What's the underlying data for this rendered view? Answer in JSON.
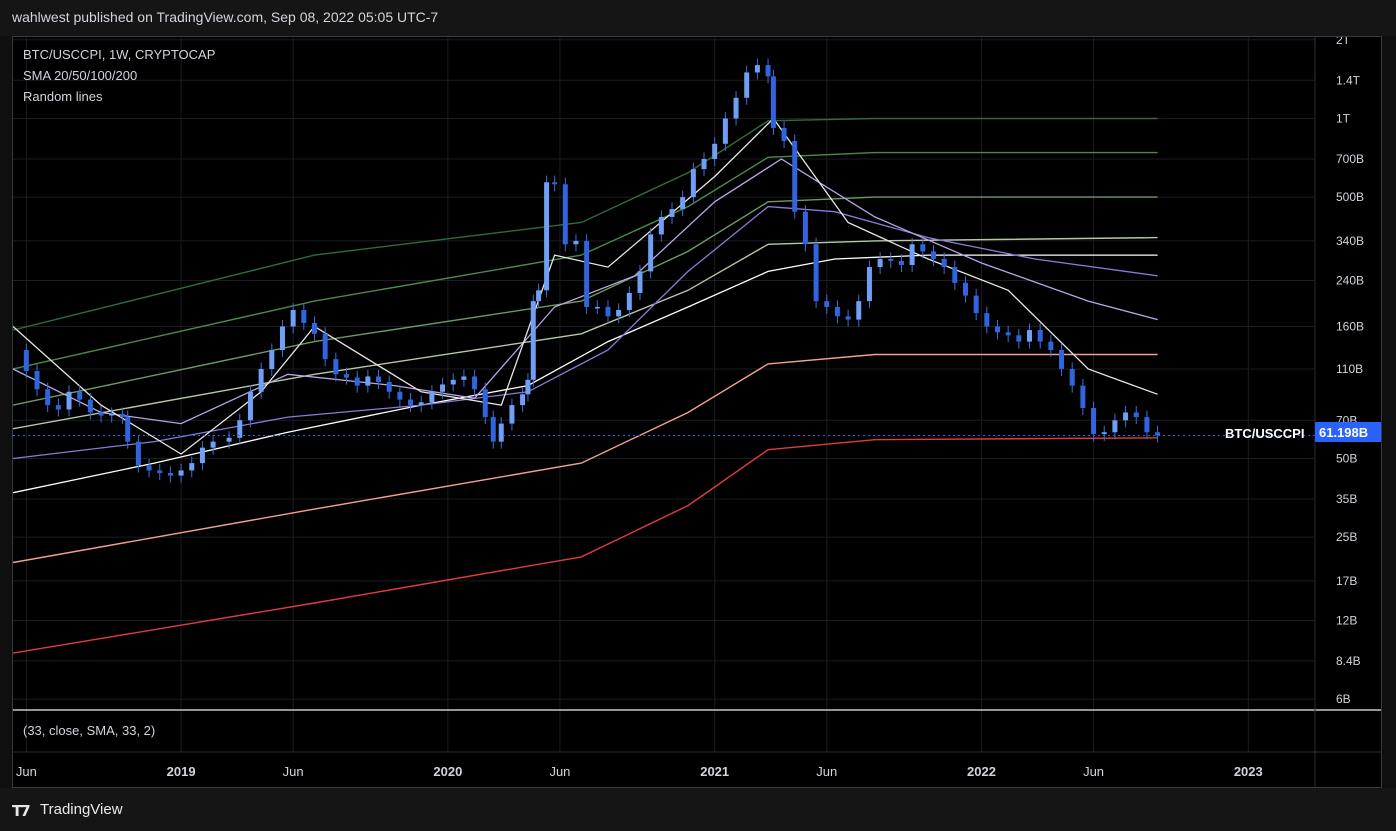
{
  "header": {
    "published": "wahlwest published on TradingView.com, Sep 08, 2022 05:05 UTC-7"
  },
  "footer": {
    "brand": "TradingView",
    "logo_icon": "tradingview-logo-icon"
  },
  "chart_data": {
    "type": "candlestick",
    "symbol_line": "BTC/USCCPI, 1W, CRYPTOCAP",
    "legend_lines": [
      "SMA 20/50/100/200",
      "Random lines"
    ],
    "pane_label": "(33, close, SMA, 33, 2)",
    "price_label": {
      "name": "BTC/USCCPI",
      "value": "61.198B"
    },
    "y_scale": "log",
    "y_ticks": [
      "2T",
      "1.4T",
      "1T",
      "700B",
      "500B",
      "340B",
      "240B",
      "160B",
      "110B",
      "70B",
      "50B",
      "35B",
      "25B",
      "17B",
      "12B",
      "8.4B",
      "6B"
    ],
    "y_tick_values": [
      2000,
      1400,
      1000,
      700,
      500,
      340,
      240,
      160,
      110,
      70,
      50,
      35,
      25,
      17,
      12,
      8.4,
      6
    ],
    "x_ticks": [
      "Jun",
      "2019",
      "Jun",
      "2020",
      "Jun",
      "2021",
      "Jun",
      "2022",
      "Jun",
      "2023"
    ],
    "x_tick_times": [
      2018.42,
      2019.0,
      2019.42,
      2020.0,
      2020.42,
      2021.0,
      2021.42,
      2022.0,
      2022.42,
      2023.0
    ],
    "x_range": [
      2018.37,
      2023.25
    ],
    "ylim": [
      5.5,
      2050
    ],
    "price_path": [
      [
        2018.38,
        130
      ],
      [
        2018.42,
        108
      ],
      [
        2018.46,
        92
      ],
      [
        2018.5,
        80
      ],
      [
        2018.54,
        77
      ],
      [
        2018.58,
        90
      ],
      [
        2018.62,
        84
      ],
      [
        2018.66,
        75
      ],
      [
        2018.7,
        73
      ],
      [
        2018.74,
        74
      ],
      [
        2018.78,
        72
      ],
      [
        2018.8,
        58
      ],
      [
        2018.84,
        47
      ],
      [
        2018.88,
        45
      ],
      [
        2018.92,
        44
      ],
      [
        2018.96,
        43
      ],
      [
        2019.0,
        45
      ],
      [
        2019.04,
        48
      ],
      [
        2019.08,
        55
      ],
      [
        2019.12,
        58
      ],
      [
        2019.18,
        60
      ],
      [
        2019.22,
        70
      ],
      [
        2019.26,
        90
      ],
      [
        2019.3,
        110
      ],
      [
        2019.34,
        130
      ],
      [
        2019.38,
        160
      ],
      [
        2019.42,
        185
      ],
      [
        2019.46,
        165
      ],
      [
        2019.5,
        150
      ],
      [
        2019.54,
        120
      ],
      [
        2019.58,
        105
      ],
      [
        2019.62,
        102
      ],
      [
        2019.66,
        95
      ],
      [
        2019.7,
        103
      ],
      [
        2019.74,
        98
      ],
      [
        2019.78,
        90
      ],
      [
        2019.82,
        84
      ],
      [
        2019.86,
        80
      ],
      [
        2019.9,
        82
      ],
      [
        2019.94,
        90
      ],
      [
        2019.98,
        96
      ],
      [
        2020.02,
        100
      ],
      [
        2020.06,
        103
      ],
      [
        2020.1,
        92
      ],
      [
        2020.14,
        72
      ],
      [
        2020.17,
        58
      ],
      [
        2020.2,
        68
      ],
      [
        2020.24,
        80
      ],
      [
        2020.28,
        88
      ],
      [
        2020.3,
        100
      ],
      [
        2020.32,
        200
      ],
      [
        2020.34,
        220
      ],
      [
        2020.37,
        570
      ],
      [
        2020.4,
        560
      ],
      [
        2020.44,
        330
      ],
      [
        2020.48,
        340
      ],
      [
        2020.52,
        190
      ],
      [
        2020.56,
        190
      ],
      [
        2020.6,
        175
      ],
      [
        2020.64,
        185
      ],
      [
        2020.68,
        215
      ],
      [
        2020.72,
        260
      ],
      [
        2020.76,
        360
      ],
      [
        2020.8,
        420
      ],
      [
        2020.84,
        450
      ],
      [
        2020.88,
        500
      ],
      [
        2020.92,
        640
      ],
      [
        2020.96,
        700
      ],
      [
        2021.0,
        800
      ],
      [
        2021.04,
        1000
      ],
      [
        2021.08,
        1200
      ],
      [
        2021.12,
        1500
      ],
      [
        2021.16,
        1600
      ],
      [
        2021.2,
        1450
      ],
      [
        2021.22,
        920
      ],
      [
        2021.26,
        820
      ],
      [
        2021.3,
        440
      ],
      [
        2021.34,
        330
      ],
      [
        2021.38,
        200
      ],
      [
        2021.42,
        190
      ],
      [
        2021.46,
        175
      ],
      [
        2021.5,
        170
      ],
      [
        2021.54,
        200
      ],
      [
        2021.58,
        270
      ],
      [
        2021.62,
        290
      ],
      [
        2021.66,
        285
      ],
      [
        2021.7,
        275
      ],
      [
        2021.74,
        330
      ],
      [
        2021.78,
        310
      ],
      [
        2021.82,
        290
      ],
      [
        2021.86,
        270
      ],
      [
        2021.9,
        235
      ],
      [
        2021.94,
        210
      ],
      [
        2021.98,
        180
      ],
      [
        2022.02,
        160
      ],
      [
        2022.06,
        152
      ],
      [
        2022.1,
        148
      ],
      [
        2022.14,
        140
      ],
      [
        2022.18,
        155
      ],
      [
        2022.22,
        140
      ],
      [
        2022.26,
        130
      ],
      [
        2022.3,
        110
      ],
      [
        2022.34,
        95
      ],
      [
        2022.38,
        78
      ],
      [
        2022.42,
        62
      ],
      [
        2022.46,
        63
      ],
      [
        2022.5,
        70
      ],
      [
        2022.54,
        75
      ],
      [
        2022.58,
        72
      ],
      [
        2022.62,
        63
      ],
      [
        2022.66,
        61.2
      ]
    ],
    "ma_series": [
      {
        "color": "#ffffff",
        "values": [
          [
            2018.37,
            37
          ],
          [
            2018.9,
            48
          ],
          [
            2019.4,
            63
          ],
          [
            2019.9,
            80
          ],
          [
            2020.3,
            95
          ],
          [
            2020.6,
            140
          ],
          [
            2020.9,
            190
          ],
          [
            2021.2,
            260
          ],
          [
            2021.45,
            290
          ],
          [
            2021.8,
            300
          ],
          [
            2022.2,
            300
          ],
          [
            2022.66,
            300
          ]
        ]
      },
      {
        "color": "#8c7ad8",
        "values": [
          [
            2018.37,
            50
          ],
          [
            2018.9,
            58
          ],
          [
            2019.4,
            72
          ],
          [
            2019.9,
            80
          ],
          [
            2020.3,
            90
          ],
          [
            2020.6,
            130
          ],
          [
            2020.9,
            260
          ],
          [
            2021.2,
            460
          ],
          [
            2021.45,
            440
          ],
          [
            2021.8,
            350
          ],
          [
            2022.2,
            290
          ],
          [
            2022.66,
            250
          ]
        ]
      },
      {
        "color": "#b9a6e8",
        "values": [
          [
            2018.37,
            110
          ],
          [
            2018.7,
            75
          ],
          [
            2019.0,
            68
          ],
          [
            2019.4,
            105
          ],
          [
            2019.8,
            95
          ],
          [
            2020.1,
            85
          ],
          [
            2020.4,
            190
          ],
          [
            2020.7,
            250
          ],
          [
            2021.0,
            480
          ],
          [
            2021.25,
            700
          ],
          [
            2021.6,
            420
          ],
          [
            2022.0,
            280
          ],
          [
            2022.4,
            200
          ],
          [
            2022.66,
            170
          ]
        ]
      },
      {
        "color": "#e6e6e6",
        "values": [
          [
            2018.37,
            160
          ],
          [
            2018.7,
            80
          ],
          [
            2019.0,
            52
          ],
          [
            2019.3,
            90
          ],
          [
            2019.5,
            160
          ],
          [
            2019.9,
            90
          ],
          [
            2020.2,
            80
          ],
          [
            2020.4,
            300
          ],
          [
            2020.6,
            270
          ],
          [
            2021.0,
            600
          ],
          [
            2021.22,
            1000
          ],
          [
            2021.5,
            400
          ],
          [
            2021.8,
            290
          ],
          [
            2022.1,
            220
          ],
          [
            2022.4,
            110
          ],
          [
            2022.66,
            88
          ]
        ]
      }
    ],
    "ray_lines": [
      {
        "color": "#2f6b3c",
        "values": [
          [
            2018.37,
            155
          ],
          [
            2019.5,
            300
          ],
          [
            2020.5,
            400
          ],
          [
            2020.9,
            620
          ],
          [
            2021.2,
            980
          ],
          [
            2021.6,
            1000
          ],
          [
            2022.66,
            1000
          ]
        ]
      },
      {
        "color": "#4a8a4f",
        "values": [
          [
            2018.37,
            110
          ],
          [
            2019.5,
            200
          ],
          [
            2020.5,
            300
          ],
          [
            2020.9,
            460
          ],
          [
            2021.2,
            710
          ],
          [
            2021.6,
            740
          ],
          [
            2022.66,
            740
          ]
        ]
      },
      {
        "color": "#6e9a62",
        "values": [
          [
            2018.37,
            80
          ],
          [
            2019.5,
            140
          ],
          [
            2020.5,
            200
          ],
          [
            2020.9,
            310
          ],
          [
            2021.2,
            480
          ],
          [
            2021.6,
            500
          ],
          [
            2022.66,
            500
          ]
        ]
      },
      {
        "color": "#b5c8a8",
        "values": [
          [
            2018.37,
            65
          ],
          [
            2019.5,
            105
          ],
          [
            2020.5,
            150
          ],
          [
            2020.9,
            220
          ],
          [
            2021.2,
            330
          ],
          [
            2021.6,
            340
          ],
          [
            2022.66,
            350
          ]
        ]
      },
      {
        "color": "#f4a090",
        "values": [
          [
            2018.37,
            20
          ],
          [
            2019.5,
            32
          ],
          [
            2020.5,
            48
          ],
          [
            2020.9,
            75
          ],
          [
            2021.2,
            115
          ],
          [
            2021.6,
            125
          ],
          [
            2022.66,
            125
          ]
        ]
      },
      {
        "color": "#e03c3c",
        "values": [
          [
            2018.37,
            9
          ],
          [
            2019.5,
            14
          ],
          [
            2020.5,
            21
          ],
          [
            2020.9,
            33
          ],
          [
            2021.2,
            54
          ],
          [
            2021.6,
            59
          ],
          [
            2022.66,
            60
          ]
        ]
      }
    ]
  }
}
